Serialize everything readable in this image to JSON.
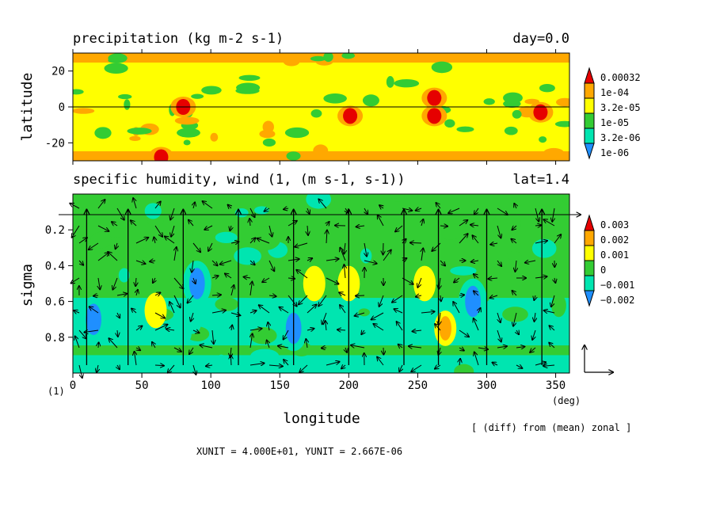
{
  "chart_data": [
    {
      "type": "heatmap",
      "title": "precipitation (kg m-2 s-1)",
      "right_title": "day=0.0",
      "xlabel": "",
      "ylabel": "latitude",
      "xlim": [
        0,
        360
      ],
      "ylim": [
        -30,
        30
      ],
      "yticks": [
        20,
        0,
        -20
      ],
      "zero_line": 0,
      "colorbar": {
        "labels": [
          "0.00032",
          "1e-04",
          "3.2e-05",
          "1e-05",
          "3.2e-06",
          "1e-06"
        ],
        "colors": [
          "#e60000",
          "#ffa800",
          "#ffff00",
          "#33cc33",
          "#00e5b0",
          "#1f8fff"
        ]
      },
      "background_level": "3.2e-05",
      "features": [
        {
          "lon": 80,
          "lat": 0,
          "level": 0
        },
        {
          "lon": 201,
          "lat": -5,
          "level": 0
        },
        {
          "lon": 262,
          "lat": 5,
          "level": 0
        },
        {
          "lon": 262,
          "lat": -5,
          "level": 0
        },
        {
          "lon": 339,
          "lat": -3,
          "level": 0
        },
        {
          "lon": 64,
          "lat": -28,
          "level": 0
        }
      ]
    },
    {
      "type": "heatmap",
      "title": "specific humidity, wind (1, (m s-1, s-1))",
      "right_title": "lat=1.4",
      "xlabel": "longitude",
      "ylabel": "sigma",
      "xlim": [
        0,
        360
      ],
      "ylim": [
        1.0,
        0.0
      ],
      "xticks": [
        0,
        50,
        100,
        150,
        200,
        250,
        300,
        350
      ],
      "yticks": [
        0.2,
        0.4,
        0.6,
        0.8
      ],
      "x_unit_label": "(deg)",
      "y_unit_label": "(1)",
      "colorbar": {
        "labels": [
          "0.003",
          "0.002",
          "0.001",
          "0",
          "−0.001",
          "−0.002"
        ],
        "colors": [
          "#e60000",
          "#ffa800",
          "#ffff00",
          "#33cc33",
          "#00e5b0",
          "#1f8fff"
        ]
      },
      "background_level": "0",
      "vector_columns_lon": [
        10,
        40,
        80,
        120,
        160,
        200,
        240,
        265,
        300,
        340
      ],
      "features": [
        {
          "lon": 15,
          "sigma": 0.7,
          "level": 5
        },
        {
          "lon": 90,
          "sigma": 0.5,
          "level": 5
        },
        {
          "lon": 160,
          "sigma": 0.75,
          "level": 5
        },
        {
          "lon": 290,
          "sigma": 0.6,
          "level": 5
        },
        {
          "lon": 200,
          "sigma": 0.5,
          "level": 2
        },
        {
          "lon": 175,
          "sigma": 0.5,
          "level": 2
        },
        {
          "lon": 60,
          "sigma": 0.65,
          "level": 2
        },
        {
          "lon": 255,
          "sigma": 0.5,
          "level": 2
        },
        {
          "lon": 270,
          "sigma": 0.75,
          "level": 1
        }
      ]
    }
  ],
  "footer": {
    "units": "XUNIT = 4.000E+01, YUNIT = 2.667E-06",
    "note": "[ (diff) from (mean) zonal ]"
  }
}
